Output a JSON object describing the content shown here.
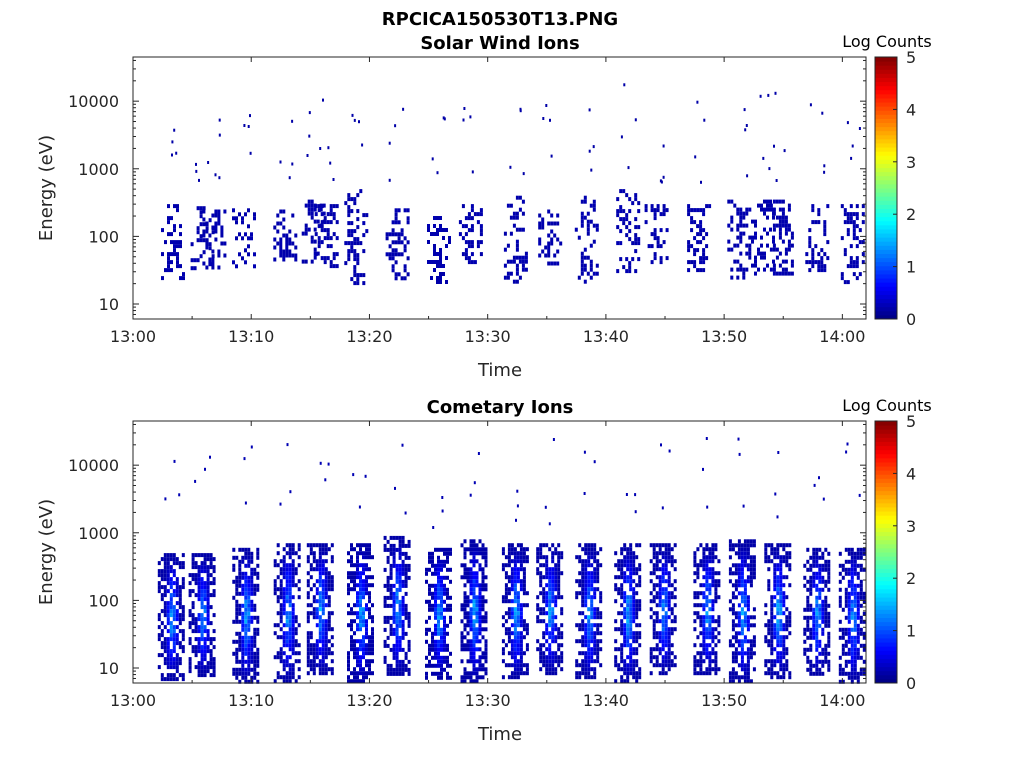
{
  "figure_title": "RPCICA150530T13.PNG",
  "chart_data": [
    {
      "type": "heatmap",
      "title": "Solar Wind Ions",
      "xlabel": "Time",
      "ylabel": "Energy (eV)",
      "x_ticks": [
        "13:00",
        "13:10",
        "13:20",
        "13:30",
        "13:40",
        "13:50",
        "14:00"
      ],
      "xlim_minutes": [
        0,
        62
      ],
      "y_ticks": [
        10,
        100,
        1000,
        10000
      ],
      "ylim": [
        6,
        45000
      ],
      "y_scale": "log",
      "colorbar": {
        "title": "Log Counts",
        "ticks": [
          0,
          1,
          2,
          3,
          4,
          5
        ],
        "range": [
          0,
          5
        ],
        "colormap": "jet"
      },
      "dominant_log_counts": 0.2,
      "activity_bursts": [
        {
          "t": 3.3,
          "e_low": 25,
          "e_high": 300
        },
        {
          "t": 5.8,
          "e_low": 35,
          "e_high": 280
        },
        {
          "t": 6.8,
          "e_low": 35,
          "e_high": 250
        },
        {
          "t": 9.3,
          "e_low": 35,
          "e_high": 260
        },
        {
          "t": 12.8,
          "e_low": 45,
          "e_high": 250
        },
        {
          "t": 15.2,
          "e_low": 40,
          "e_high": 350
        },
        {
          "t": 16.3,
          "e_low": 35,
          "e_high": 300
        },
        {
          "t": 18.8,
          "e_low": 20,
          "e_high": 500
        },
        {
          "t": 22.3,
          "e_low": 25,
          "e_high": 260
        },
        {
          "t": 25.8,
          "e_low": 20,
          "e_high": 200
        },
        {
          "t": 28.5,
          "e_low": 40,
          "e_high": 300
        },
        {
          "t": 32.3,
          "e_low": 20,
          "e_high": 400
        },
        {
          "t": 35.2,
          "e_low": 35,
          "e_high": 250
        },
        {
          "t": 38.3,
          "e_low": 20,
          "e_high": 400
        },
        {
          "t": 41.8,
          "e_low": 30,
          "e_high": 500
        },
        {
          "t": 44.2,
          "e_low": 40,
          "e_high": 300
        },
        {
          "t": 47.8,
          "e_low": 30,
          "e_high": 300
        },
        {
          "t": 51.2,
          "e_low": 25,
          "e_high": 350
        },
        {
          "t": 53.2,
          "e_low": 30,
          "e_high": 350
        },
        {
          "t": 54.8,
          "e_low": 30,
          "e_high": 350
        },
        {
          "t": 57.8,
          "e_low": 30,
          "e_high": 300
        },
        {
          "t": 60.8,
          "e_low": 20,
          "e_high": 300
        }
      ]
    },
    {
      "type": "heatmap",
      "title": "Cometary Ions",
      "xlabel": "Time",
      "ylabel": "Energy (eV)",
      "x_ticks": [
        "13:00",
        "13:10",
        "13:20",
        "13:30",
        "13:40",
        "13:50",
        "14:00"
      ],
      "xlim_minutes": [
        0,
        62
      ],
      "y_ticks": [
        10,
        100,
        1000,
        10000
      ],
      "ylim": [
        6,
        45000
      ],
      "y_scale": "log",
      "colorbar": {
        "title": "Log Counts",
        "ticks": [
          0,
          1,
          2,
          3,
          4,
          5
        ],
        "range": [
          0,
          5
        ],
        "colormap": "jet"
      },
      "peak_log_counts": 2.0,
      "activity_bursts": [
        {
          "t": 3.2,
          "e_low": 7,
          "e_high": 500,
          "peak": 1.9
        },
        {
          "t": 5.8,
          "e_low": 8,
          "e_high": 500,
          "peak": 1.8
        },
        {
          "t": 9.5,
          "e_low": 6,
          "e_high": 600,
          "peak": 1.9
        },
        {
          "t": 13.0,
          "e_low": 6,
          "e_high": 700,
          "peak": 1.8
        },
        {
          "t": 15.8,
          "e_low": 8,
          "e_high": 700,
          "peak": 1.9
        },
        {
          "t": 19.2,
          "e_low": 6,
          "e_high": 700,
          "peak": 1.9
        },
        {
          "t": 22.3,
          "e_low": 8,
          "e_high": 900,
          "peak": 1.8
        },
        {
          "t": 25.8,
          "e_low": 7,
          "e_high": 600,
          "peak": 1.8
        },
        {
          "t": 28.8,
          "e_low": 6,
          "e_high": 800,
          "peak": 1.9
        },
        {
          "t": 32.3,
          "e_low": 7,
          "e_high": 700,
          "peak": 1.9
        },
        {
          "t": 35.2,
          "e_low": 8,
          "e_high": 700,
          "peak": 1.8
        },
        {
          "t": 38.5,
          "e_low": 7,
          "e_high": 700,
          "peak": 1.9
        },
        {
          "t": 41.8,
          "e_low": 6,
          "e_high": 700,
          "peak": 1.9
        },
        {
          "t": 44.8,
          "e_low": 8,
          "e_high": 700,
          "peak": 1.8
        },
        {
          "t": 48.5,
          "e_low": 8,
          "e_high": 700,
          "peak": 1.9
        },
        {
          "t": 51.5,
          "e_low": 6,
          "e_high": 800,
          "peak": 1.9
        },
        {
          "t": 54.5,
          "e_low": 7,
          "e_high": 700,
          "peak": 1.9
        },
        {
          "t": 57.8,
          "e_low": 8,
          "e_high": 600,
          "peak": 1.8
        },
        {
          "t": 60.8,
          "e_low": 6,
          "e_high": 600,
          "peak": 1.8
        }
      ]
    }
  ]
}
